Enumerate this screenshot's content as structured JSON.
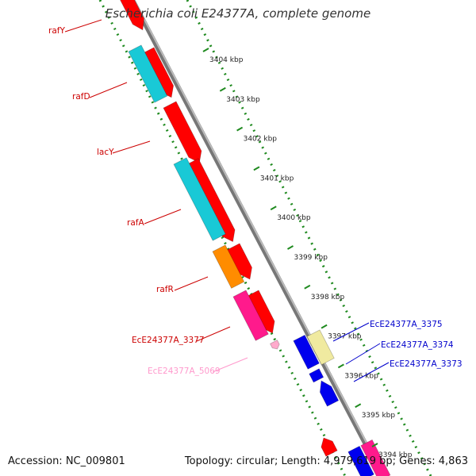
{
  "title": "Escherichia coli E24377A, complete genome",
  "footer": {
    "accession": "Accession: NC_009801",
    "topology": "Topology: circular; Length: 4,979,619 bp; Genes: 4,863"
  },
  "colors": {
    "backbone": "#8a8a8a",
    "ruler_dots": "#1f8a1f",
    "forward_red": "#ff0000",
    "cyan": "#19c9d6",
    "orange": "#ff8c00",
    "pink": "#ff1a8c",
    "blue": "#0000ee",
    "yellow": "#f0eaa0",
    "light_pink": "#ffaacc"
  },
  "ticks": [
    "3404 kbp",
    "3403 kbp",
    "3402 kbp",
    "3401 kbp",
    "3400 kbp",
    "3399 kbp",
    "3398 kbp",
    "3397 kbp",
    "3396 kbp",
    "3395 kbp",
    "3394 kbp"
  ],
  "left_labels": [
    {
      "name": "rafY",
      "color": "#cc0000"
    },
    {
      "name": "rafD",
      "color": "#cc0000"
    },
    {
      "name": "lacY",
      "color": "#cc0000"
    },
    {
      "name": "rafA",
      "color": "#cc0000"
    },
    {
      "name": "rafR",
      "color": "#cc0000"
    },
    {
      "name": "EcE24377A_3377",
      "color": "#cc0000"
    },
    {
      "name": "EcE24377A_5069",
      "color": "#ff99cc"
    }
  ],
  "right_labels": [
    {
      "name": "EcE24377A_3375",
      "color": "#0000cc"
    },
    {
      "name": "EcE24377A_3374",
      "color": "#0000cc"
    },
    {
      "name": "EcE24377A_3373",
      "color": "#0000cc"
    }
  ]
}
